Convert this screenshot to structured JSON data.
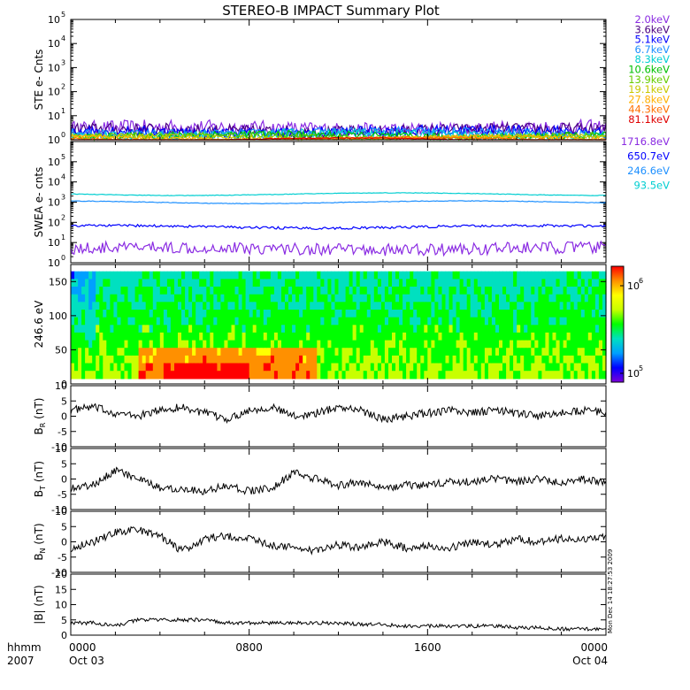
{
  "title": "STEREO-B IMPACT Summary Plot",
  "footer": {
    "left_top": "hhmm",
    "left_bottom": "2007",
    "ticks": [
      {
        "top": "0000",
        "bottom": "Oct 03"
      },
      {
        "top": "0800",
        "bottom": ""
      },
      {
        "top": "1600",
        "bottom": ""
      },
      {
        "top": "0000",
        "bottom": "Oct 04"
      }
    ],
    "timestamp": "Mon Dec 14 18:27:53 2009"
  },
  "colors": {
    "line": "#000000",
    "ste_legend": [
      "#8a2be2",
      "#4b0082",
      "#0000ff",
      "#1e90ff",
      "#00ced1",
      "#00c000",
      "#66cc00",
      "#c8c800",
      "#ffb000",
      "#ff7000",
      "#e00000"
    ],
    "swea_legend": [
      "#8a2be2",
      "#0000ff",
      "#1e90ff",
      "#00ced1"
    ],
    "colorbar": [
      "#7b00d8",
      "#0000ff",
      "#00a0ff",
      "#00e0c0",
      "#00ff00",
      "#c8ff00",
      "#ffff00",
      "#ff9000",
      "#ff0000"
    ]
  },
  "chart_data": [
    {
      "id": "ste",
      "type": "line",
      "ylabel": "STE e- Cnts",
      "yscale": "log",
      "ylim": [
        1,
        100000
      ],
      "yticks": [
        "10^0",
        "10^1",
        "10^2",
        "10^3",
        "10^4",
        "10^5"
      ],
      "xlim": [
        0,
        24
      ],
      "legend": [
        "2.0keV",
        "3.6keV",
        "5.1keV",
        "6.7keV",
        "8.3keV",
        "10.6keV",
        "13.9keV",
        "19.1keV",
        "27.8keV",
        "44.3keV",
        "81.1keV"
      ],
      "series": [
        {
          "name": "2.0keV",
          "level": 3.0,
          "spread": 0.6
        },
        {
          "name": "3.6keV",
          "level": 2.5,
          "spread": 0.5
        },
        {
          "name": "5.1keV",
          "level": 2.2,
          "spread": 0.45
        },
        {
          "name": "6.7keV",
          "level": 1.9,
          "spread": 0.4
        },
        {
          "name": "8.3keV",
          "level": 1.7,
          "spread": 0.35
        },
        {
          "name": "10.6keV",
          "level": 1.5,
          "spread": 0.3
        },
        {
          "name": "13.9keV",
          "level": 1.35,
          "spread": 0.25
        },
        {
          "name": "19.1keV",
          "level": 1.25,
          "spread": 0.2
        },
        {
          "name": "27.8keV",
          "level": 1.15,
          "spread": 0.15
        },
        {
          "name": "44.3keV",
          "level": 1.08,
          "spread": 0.08
        },
        {
          "name": "81.1keV",
          "level": 1.03,
          "spread": 0.04
        }
      ]
    },
    {
      "id": "swea",
      "type": "line",
      "ylabel": "SWEA e- cnts",
      "yscale": "log",
      "ylim": [
        1,
        1000000
      ],
      "yticks": [
        "10^0",
        "10^1",
        "10^2",
        "10^3",
        "10^4",
        "10^5"
      ],
      "xlim": [
        0,
        24
      ],
      "legend": [
        "1716.8eV",
        "650.7eV",
        "246.6eV",
        "93.5eV"
      ],
      "series": [
        {
          "name": "1716.8eV",
          "level": 5,
          "spread": 0.6
        },
        {
          "name": "650.7eV",
          "level": 60,
          "spread": 0.12
        },
        {
          "name": "246.6eV",
          "level": 1000,
          "spread": 0.03
        },
        {
          "name": "93.5eV",
          "level": 2500,
          "spread": 0.03
        }
      ]
    },
    {
      "id": "spec",
      "type": "heatmap",
      "ylabel": "246.6 eV",
      "ylim": [
        0,
        175
      ],
      "yticks": [
        0,
        50,
        100,
        150
      ],
      "xlim": [
        0,
        24
      ],
      "colorbar_labels": [
        "10^5",
        "10^6"
      ]
    },
    {
      "id": "br",
      "type": "line",
      "ylabel": "B_R (nT)",
      "ylim": [
        -10,
        10
      ],
      "yticks": [
        -10,
        -5,
        0,
        5,
        10
      ],
      "xlim": [
        0,
        24
      ],
      "x": [
        0,
        1,
        2,
        3,
        4,
        5,
        6,
        7,
        8,
        9,
        10,
        11,
        12,
        13,
        14,
        15,
        16,
        17,
        18,
        19,
        20,
        21,
        22,
        23,
        24
      ],
      "y": [
        2,
        3,
        1,
        0,
        2,
        3,
        1,
        -1,
        2,
        3,
        0,
        1,
        3,
        2,
        -1,
        0,
        1,
        2,
        1,
        2,
        1,
        0,
        1,
        2,
        1
      ]
    },
    {
      "id": "bt",
      "type": "line",
      "ylabel": "B_T (nT)",
      "ylim": [
        -10,
        10
      ],
      "yticks": [
        -10,
        -5,
        0,
        5,
        10
      ],
      "xlim": [
        0,
        24
      ],
      "x": [
        0,
        1,
        2,
        3,
        4,
        5,
        6,
        7,
        8,
        9,
        10,
        11,
        12,
        13,
        14,
        15,
        16,
        17,
        18,
        19,
        20,
        21,
        22,
        23,
        24
      ],
      "y": [
        -3,
        -2,
        3,
        0,
        -3,
        -3,
        -4,
        -2,
        -4,
        -3,
        2,
        0,
        -2,
        -1,
        -3,
        -2,
        -2,
        -1,
        -1,
        0,
        -1,
        0,
        -1,
        0,
        -1
      ]
    },
    {
      "id": "bn",
      "type": "line",
      "ylabel": "B_N (nT)",
      "ylim": [
        -10,
        10
      ],
      "yticks": [
        -10,
        -5,
        0,
        5,
        10
      ],
      "xlim": [
        0,
        24
      ],
      "x": [
        0,
        1,
        2,
        3,
        4,
        5,
        6,
        7,
        8,
        9,
        10,
        11,
        12,
        13,
        14,
        15,
        16,
        17,
        18,
        19,
        20,
        21,
        22,
        23,
        24
      ],
      "y": [
        -2,
        0,
        3,
        4,
        2,
        -3,
        1,
        2,
        1,
        -1,
        -2,
        -3,
        -1,
        -2,
        0,
        -2,
        -1,
        -2,
        0,
        -1,
        1,
        0,
        1,
        1,
        2
      ]
    },
    {
      "id": "bmag",
      "type": "line",
      "ylabel": "|B| (nT)",
      "ylim": [
        0,
        20
      ],
      "yticks": [
        0,
        5,
        10,
        15,
        20
      ],
      "xlim": [
        0,
        24
      ],
      "x": [
        0,
        1,
        2,
        3,
        4,
        5,
        6,
        7,
        8,
        9,
        10,
        11,
        12,
        13,
        14,
        15,
        16,
        17,
        18,
        19,
        20,
        21,
        22,
        23,
        24
      ],
      "y": [
        4,
        4,
        3,
        5,
        5,
        5,
        5,
        4,
        4,
        4,
        4,
        4,
        4,
        3.5,
        3.5,
        3,
        3,
        3,
        3,
        3,
        2.5,
        2.5,
        2,
        2,
        2
      ]
    }
  ]
}
